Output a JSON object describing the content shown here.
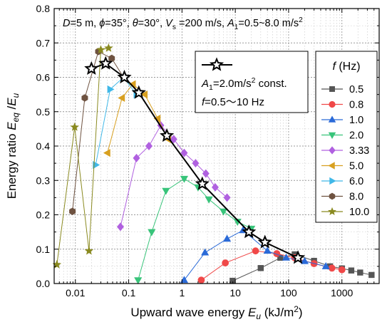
{
  "chart_data": {
    "type": "scatter",
    "title": "",
    "header_text": "D=5 m, ϕ=35°, θ=30°, Vs =200 m/s, A1=0.5~8.0 m/s²",
    "xlabel": "Upward wave energy  Eu  (kJ/m²)",
    "ylabel": "Energy ratio  Eeq /Eu",
    "x_scale": "log",
    "xlim": [
      0.004,
      5000
    ],
    "ylim": [
      0,
      0.8
    ],
    "x_ticks": [
      0.01,
      0.1,
      1,
      10,
      100,
      1000
    ],
    "x_tick_labels": [
      "0.01",
      "0.1",
      "1",
      "10",
      "100",
      "1000"
    ],
    "y_ticks": [
      0,
      0.1,
      0.2,
      0.3,
      0.4,
      0.5,
      0.6,
      0.7,
      0.8
    ],
    "y_tick_labels": [
      "0.0",
      "0.1",
      "0.2",
      "0.3",
      "0.4",
      "0.5",
      "0.6",
      "0.7",
      "0.8"
    ],
    "grid": true,
    "legend_title": "f (Hz)",
    "legend_position": "right",
    "series": [
      {
        "name": "0.5",
        "color": "#555555",
        "marker": "square",
        "x": [
          8.9,
          30,
          70,
          130,
          300,
          600,
          1000,
          1500,
          2200,
          3600
        ],
        "y": [
          0.008,
          0.045,
          0.075,
          0.085,
          0.066,
          0.05,
          0.044,
          0.038,
          0.032,
          0.025
        ]
      },
      {
        "name": "0.8",
        "color": "#f04848",
        "marker": "circle",
        "x": [
          2.3,
          6.5,
          24,
          60,
          130,
          300,
          650,
          1000
        ],
        "y": [
          0.01,
          0.06,
          0.095,
          0.087,
          0.075,
          0.058,
          0.045,
          0.04
        ]
      },
      {
        "name": "1.0",
        "color": "#2a6ad8",
        "marker": "triangle-up",
        "x": [
          1.1,
          2.7,
          7.0,
          14,
          40,
          90,
          200,
          500
        ],
        "y": [
          0.01,
          0.09,
          0.13,
          0.155,
          0.095,
          0.075,
          0.065,
          0.05
        ]
      },
      {
        "name": "2.0",
        "color": "#38c47a",
        "marker": "triangle-down",
        "x": [
          0.15,
          0.27,
          0.5,
          1.1,
          2.0,
          3.2,
          6.0,
          11,
          20
        ],
        "y": [
          0.01,
          0.15,
          0.27,
          0.305,
          0.28,
          0.245,
          0.21,
          0.18,
          0.16
        ]
      },
      {
        "name": "3.33",
        "color": "#b060e0",
        "marker": "diamond",
        "x": [
          0.07,
          0.14,
          0.24,
          0.4,
          0.7,
          1.1,
          1.8,
          2.8,
          4.2,
          7.0
        ],
        "y": [
          0.165,
          0.365,
          0.4,
          0.46,
          0.42,
          0.38,
          0.35,
          0.32,
          0.28,
          0.25
        ]
      },
      {
        "name": "5.0",
        "color": "#d8a020",
        "marker": "triangle-left",
        "x": [
          0.04,
          0.075,
          0.12,
          0.2,
          0.35,
          0.55
        ],
        "y": [
          0.38,
          0.54,
          0.58,
          0.55,
          0.48,
          0.42
        ]
      },
      {
        "name": "6.0",
        "color": "#40b8e8",
        "marker": "triangle-right",
        "x": [
          0.024,
          0.045,
          0.08,
          0.14
        ],
        "y": [
          0.345,
          0.565,
          0.6,
          0.55
        ]
      },
      {
        "name": "8.0",
        "color": "#6e5240",
        "marker": "hexagon",
        "x": [
          0.0088,
          0.015,
          0.027,
          0.048,
          0.08
        ],
        "y": [
          0.21,
          0.54,
          0.675,
          0.655,
          0.6
        ]
      },
      {
        "name": "10.0",
        "color": "#8a8a20",
        "marker": "star",
        "x": [
          0.0045,
          0.0097,
          0.018,
          0.03,
          0.042
        ],
        "y": [
          0.055,
          0.455,
          0.095,
          0.68,
          0.685
        ]
      }
    ],
    "reference_line": {
      "name": "A1=2.0m/s² const.",
      "marker": "star-open",
      "x": [
        0.02,
        0.037,
        0.083,
        0.155,
        0.52,
        2.4,
        18,
        36,
        150
      ],
      "y": [
        0.625,
        0.64,
        0.6,
        0.555,
        0.43,
        0.29,
        0.15,
        0.12,
        0.075
      ]
    },
    "inset_labels": {
      "const_line": "A1=2.0m/s² const.",
      "freq_range": "f=0.5～10 Hz"
    }
  }
}
